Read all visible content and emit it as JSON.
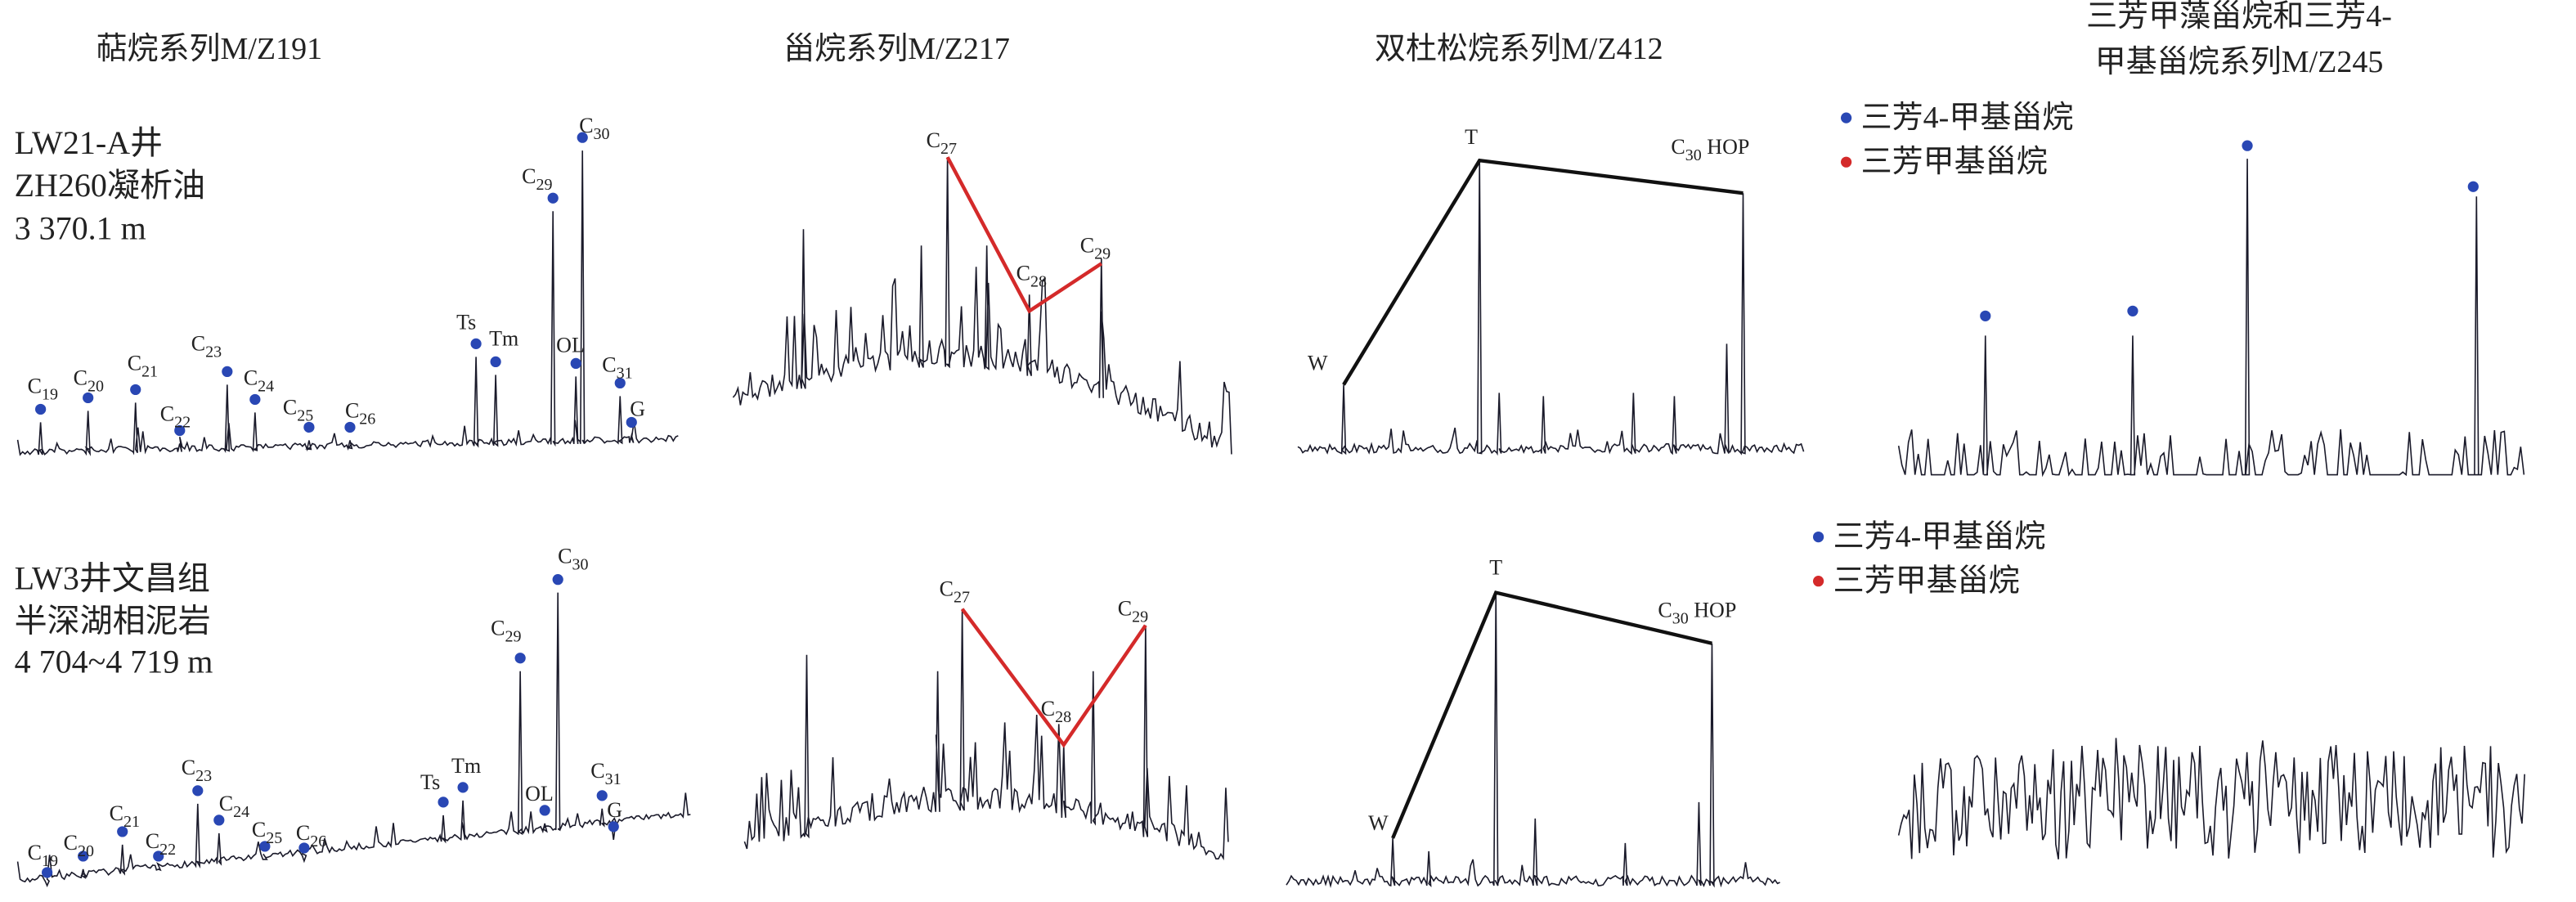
{
  "columns": [
    "萜烷系列M/Z191",
    "甾烷系列M/Z217",
    "双杜松烷系列M/Z412",
    [
      "三芳甲藻甾烷和三芳4-",
      "甲基甾烷系列M/Z245"
    ]
  ],
  "samples": [
    [
      "LW21-A井",
      "ZH260凝析油",
      "3 370.1 m"
    ],
    [
      "LW3井文昌组",
      "半深湖相泥岩",
      "4 704~4 719 m"
    ]
  ],
  "terpanes": [
    [
      "C19",
      "C20",
      "C21",
      "C22",
      "C23",
      "C24",
      "C25",
      "C26",
      "Ts",
      "Tm",
      "C29",
      "C30",
      "OL",
      "C31",
      "G"
    ],
    [
      "C19",
      "C20",
      "C21",
      "C22",
      "C23",
      "C24",
      "C25",
      "C26",
      "Ts",
      "Tm",
      "C29",
      "C30",
      "OL",
      "C31",
      "G"
    ]
  ],
  "steranes": [
    [
      "C27",
      "C28",
      "C29"
    ],
    [
      "C27",
      "C28",
      "C29"
    ]
  ],
  "cadinanes": [
    [
      "W",
      "T",
      "C30 HOP"
    ],
    [
      "W",
      "T",
      "C30 HOP"
    ]
  ],
  "legends": [
    [
      "三芳4-甲基甾烷",
      "三芳甲基甾烷"
    ],
    [
      "三芳4-甲基甾烷",
      "三芳甲基甾烷"
    ]
  ]
}
